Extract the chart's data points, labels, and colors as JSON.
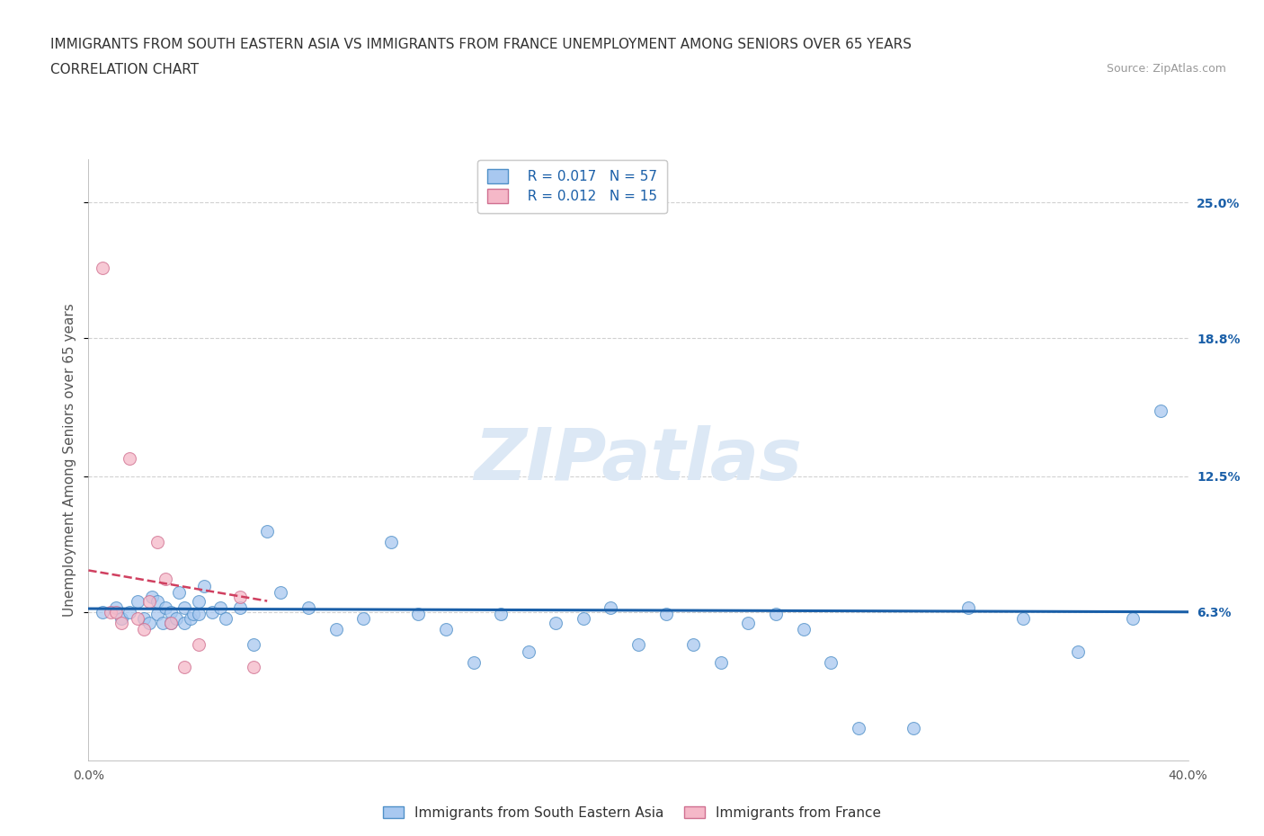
{
  "title_line1": "IMMIGRANTS FROM SOUTH EASTERN ASIA VS IMMIGRANTS FROM FRANCE UNEMPLOYMENT AMONG SENIORS OVER 65 YEARS",
  "title_line2": "CORRELATION CHART",
  "source": "Source: ZipAtlas.com",
  "ylabel": "Unemployment Among Seniors over 65 years",
  "xlim": [
    0,
    0.4
  ],
  "ylim": [
    -0.005,
    0.27
  ],
  "yticks": [
    0.063,
    0.125,
    0.188,
    0.25
  ],
  "ytick_labels": [
    "6.3%",
    "12.5%",
    "18.8%",
    "25.0%"
  ],
  "xtick_vals": [
    0.0,
    0.1,
    0.2,
    0.3,
    0.4
  ],
  "xtick_labels": [
    "0.0%",
    "",
    "",
    "",
    "40.0%"
  ],
  "blue_label": "Immigrants from South Eastern Asia",
  "pink_label": "Immigrants from France",
  "blue_R": "R = 0.017",
  "blue_N": "N = 57",
  "pink_R": "R = 0.012",
  "pink_N": "N = 15",
  "blue_color": "#a8c8f0",
  "blue_edge_color": "#5090c8",
  "blue_line_color": "#1a5fa8",
  "pink_color": "#f5b8c8",
  "pink_edge_color": "#d07090",
  "pink_line_color": "#d04060",
  "label_color": "#1a5fa8",
  "watermark": "ZIPatlas",
  "watermark_color": "#dce8f5",
  "background_color": "#ffffff",
  "grid_color": "#cccccc",
  "title_color": "#333333",
  "source_color": "#999999",
  "blue_scatter_x": [
    0.005,
    0.01,
    0.012,
    0.015,
    0.018,
    0.02,
    0.022,
    0.023,
    0.025,
    0.025,
    0.027,
    0.028,
    0.03,
    0.03,
    0.032,
    0.033,
    0.035,
    0.035,
    0.037,
    0.038,
    0.04,
    0.04,
    0.042,
    0.045,
    0.048,
    0.05,
    0.055,
    0.06,
    0.065,
    0.07,
    0.08,
    0.09,
    0.1,
    0.11,
    0.12,
    0.13,
    0.14,
    0.15,
    0.16,
    0.17,
    0.18,
    0.19,
    0.2,
    0.21,
    0.22,
    0.23,
    0.24,
    0.25,
    0.26,
    0.27,
    0.28,
    0.3,
    0.32,
    0.34,
    0.36,
    0.38,
    0.39
  ],
  "blue_scatter_y": [
    0.063,
    0.065,
    0.06,
    0.063,
    0.068,
    0.06,
    0.058,
    0.07,
    0.062,
    0.068,
    0.058,
    0.065,
    0.063,
    0.058,
    0.06,
    0.072,
    0.065,
    0.058,
    0.06,
    0.062,
    0.068,
    0.062,
    0.075,
    0.063,
    0.065,
    0.06,
    0.065,
    0.048,
    0.1,
    0.072,
    0.065,
    0.055,
    0.06,
    0.095,
    0.062,
    0.055,
    0.04,
    0.062,
    0.045,
    0.058,
    0.06,
    0.065,
    0.048,
    0.062,
    0.048,
    0.04,
    0.058,
    0.062,
    0.055,
    0.04,
    0.01,
    0.01,
    0.065,
    0.06,
    0.045,
    0.06,
    0.155
  ],
  "pink_scatter_x": [
    0.005,
    0.008,
    0.01,
    0.012,
    0.015,
    0.018,
    0.02,
    0.022,
    0.025,
    0.028,
    0.03,
    0.035,
    0.04,
    0.055,
    0.06
  ],
  "pink_scatter_y": [
    0.22,
    0.063,
    0.063,
    0.058,
    0.133,
    0.06,
    0.055,
    0.068,
    0.095,
    0.078,
    0.058,
    0.038,
    0.048,
    0.07,
    0.038
  ],
  "blue_trend_x": [
    0.0,
    0.4
  ],
  "blue_trend_y": [
    0.0645,
    0.063
  ],
  "pink_trend_x": [
    0.0,
    0.065
  ],
  "pink_trend_y": [
    0.082,
    0.068
  ],
  "title_fontsize": 11,
  "axis_label_fontsize": 11,
  "tick_fontsize": 10,
  "legend_fontsize": 11,
  "scatter_size": 100,
  "scatter_alpha": 0.75,
  "scatter_edgewidth": 0.8
}
